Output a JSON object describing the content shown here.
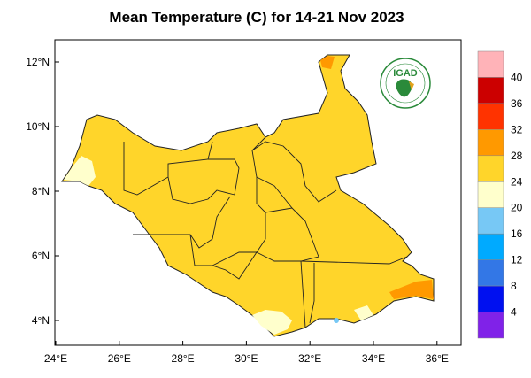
{
  "title": "Mean Temperature (C) for 14-21 Nov 2023",
  "logo_text": "IGAD",
  "x_ticks": [
    "24°E",
    "26°E",
    "28°E",
    "30°E",
    "32°E",
    "34°E",
    "36°E"
  ],
  "y_ticks": [
    "12°N",
    "10°N",
    "8°N",
    "6°N",
    "4°N"
  ],
  "colorbar": {
    "labels": [
      "40",
      "36",
      "32",
      "28",
      "24",
      "20",
      "16",
      "12",
      "8",
      "4"
    ],
    "colors": [
      "#ffb3b8",
      "#cc0000",
      "#ff3300",
      "#ff9900",
      "#ffd52a",
      "#ffffcc",
      "#77c8f5",
      "#00aaff",
      "#3377e6",
      "#0010f0",
      "#8022e8"
    ]
  },
  "map": {
    "dominant_color": "#ffd52a",
    "region": "South Sudan"
  }
}
